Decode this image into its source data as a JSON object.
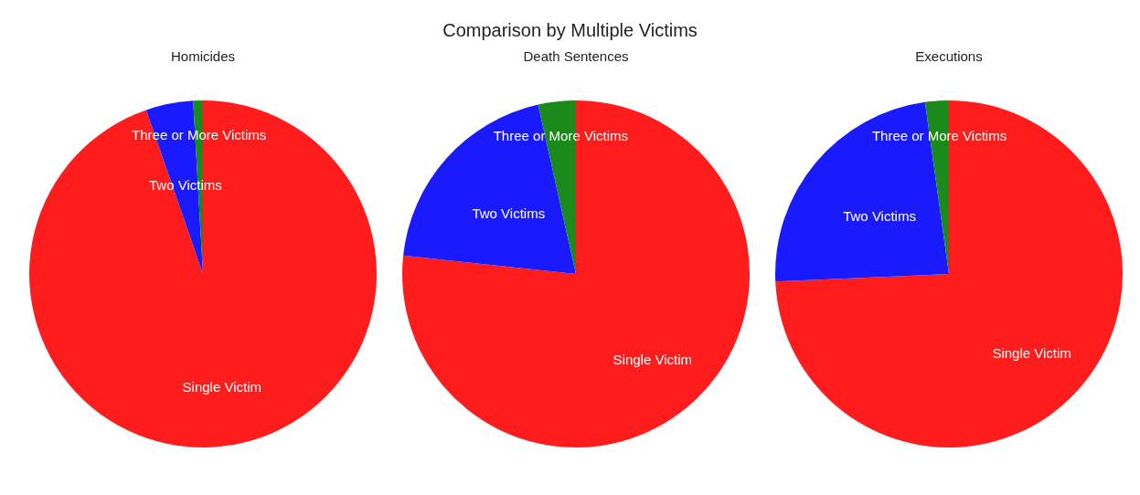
{
  "chart_data": [
    {
      "type": "pie",
      "title": "Homicides",
      "annotations": [
        "Comparison by Multiple Victims"
      ],
      "categories": [
        "Single Victim",
        "Two Victims",
        "Three or More Victims"
      ],
      "values": [
        94.7,
        4.4,
        0.9
      ],
      "colors": [
        "#ff1c1c",
        "#1a1aff",
        "#1a8a1a"
      ]
    },
    {
      "type": "pie",
      "title": "Death Sentences",
      "categories": [
        "Single Victim",
        "Two Victims",
        "Three or More Victims"
      ],
      "values": [
        76.7,
        19.8,
        3.5
      ],
      "colors": [
        "#ff1c1c",
        "#1a1aff",
        "#1a8a1a"
      ]
    },
    {
      "type": "pie",
      "title": "Executions",
      "categories": [
        "Single Victim",
        "Two Victims",
        "Three or More Victims"
      ],
      "values": [
        74.3,
        23.5,
        2.2
      ],
      "colors": [
        "#ff1c1c",
        "#1a1aff",
        "#1a8a1a"
      ]
    }
  ]
}
